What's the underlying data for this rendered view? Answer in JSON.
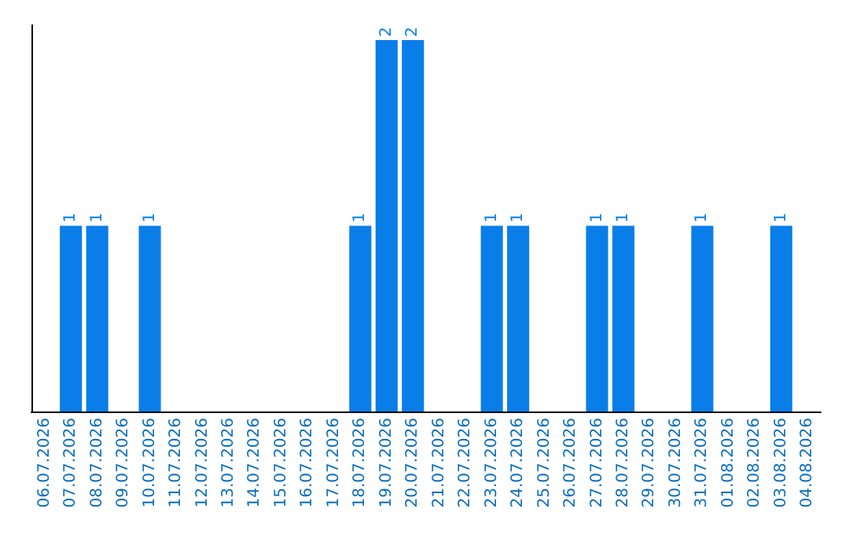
{
  "chart_data": {
    "type": "bar",
    "categories": [
      "06.07.2026",
      "07.07.2026",
      "08.07.2026",
      "09.07.2026",
      "10.07.2026",
      "11.07.2026",
      "12.07.2026",
      "13.07.2026",
      "14.07.2026",
      "15.07.2026",
      "16.07.2026",
      "17.07.2026",
      "18.07.2026",
      "19.07.2026",
      "20.07.2026",
      "21.07.2026",
      "22.07.2026",
      "23.07.2026",
      "24.07.2026",
      "25.07.2026",
      "26.07.2026",
      "27.07.2026",
      "28.07.2026",
      "29.07.2026",
      "30.07.2026",
      "31.07.2026",
      "01.08.2026",
      "02.08.2026",
      "03.08.2026",
      "04.08.2026"
    ],
    "values": [
      0,
      1,
      1,
      0,
      1,
      0,
      0,
      0,
      0,
      0,
      0,
      0,
      1,
      2,
      2,
      0,
      0,
      1,
      1,
      0,
      0,
      1,
      1,
      0,
      0,
      1,
      0,
      0,
      1,
      0
    ],
    "value_labels": [
      null,
      "1",
      "1",
      null,
      "1",
      null,
      null,
      null,
      null,
      null,
      null,
      null,
      "1",
      "2",
      "2",
      null,
      null,
      "1",
      "1",
      null,
      null,
      "1",
      "1",
      null,
      null,
      "1",
      null,
      null,
      "1",
      null
    ],
    "color": "#0a7ee8",
    "ylim": [
      0,
      2.08
    ],
    "grid": false,
    "tick_labels": "x"
  }
}
